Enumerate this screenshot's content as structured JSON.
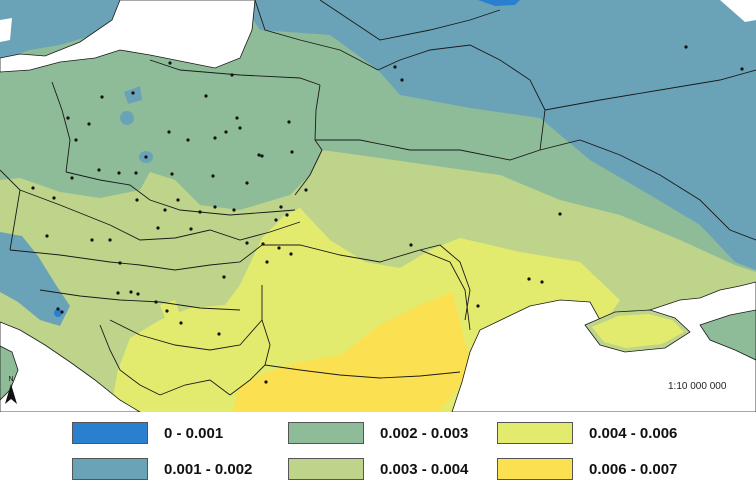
{
  "map": {
    "scale_text": "1:10 000 000",
    "north_label": "N",
    "colors": {
      "sea": "#ffffff",
      "class_1": "#2a7fcf",
      "class_2": "#6aa3b8",
      "class_3": "#8fbc98",
      "class_4": "#bdd48a",
      "class_5": "#e3eb6e",
      "class_6": "#fbe052",
      "border": "#1a1a1a",
      "point": "#111111"
    }
  },
  "legend": {
    "items": [
      {
        "label": "0 - 0.001",
        "color": "#2a7fcf"
      },
      {
        "label": "0.002 - 0.003",
        "color": "#8fbc98"
      },
      {
        "label": "0.004 - 0.006",
        "color": "#e3eb6e"
      },
      {
        "label": "0.001 - 0.002",
        "color": "#6aa3b8"
      },
      {
        "label": "0.003 - 0.004",
        "color": "#bdd48a"
      },
      {
        "label": "0.006 - 0.007",
        "color": "#fbe052"
      }
    ]
  }
}
